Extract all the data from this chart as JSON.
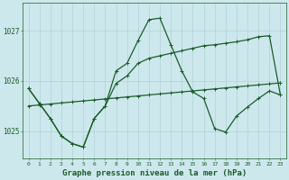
{
  "hours": [
    0,
    1,
    2,
    3,
    4,
    5,
    6,
    7,
    8,
    9,
    10,
    11,
    12,
    13,
    14,
    15,
    16,
    17,
    18,
    19,
    20,
    21,
    22,
    23
  ],
  "line_trend": [
    1025.5,
    1025.52,
    1025.54,
    1025.56,
    1025.58,
    1025.6,
    1025.62,
    1025.64,
    1025.66,
    1025.68,
    1025.7,
    1025.72,
    1025.74,
    1025.76,
    1025.78,
    1025.8,
    1025.82,
    1025.84,
    1025.86,
    1025.88,
    1025.9,
    1025.92,
    1025.94,
    1025.96
  ],
  "line_upper": [
    1025.85,
    1025.55,
    1025.25,
    1024.9,
    1024.75,
    1024.68,
    1025.25,
    1025.5,
    1026.2,
    1026.35,
    1026.8,
    1027.22,
    1027.25,
    1026.72,
    1026.2,
    1025.78,
    1025.65,
    1025.05,
    1024.98,
    1025.3,
    1025.48,
    1025.65,
    1025.8,
    1025.72
  ],
  "line_lower": [
    1025.85,
    1025.55,
    1025.25,
    1024.9,
    1024.75,
    1024.68,
    1025.25,
    1025.5,
    1025.95,
    1026.1,
    1026.35,
    1026.45,
    1026.5,
    1026.55,
    1026.6,
    1026.65,
    1026.7,
    1026.72,
    1026.75,
    1026.78,
    1026.82,
    1026.88,
    1026.9,
    1025.72
  ],
  "bg_color": "#cde8ec",
  "grid_color": "#a8cdd2",
  "line_color": "#1a5c2a",
  "title": "Graphe pression niveau de la mer (hPa)",
  "ylim_min": 1024.45,
  "ylim_max": 1027.55,
  "yticks": [
    1025,
    1026,
    1027
  ],
  "title_fontsize": 6.5
}
